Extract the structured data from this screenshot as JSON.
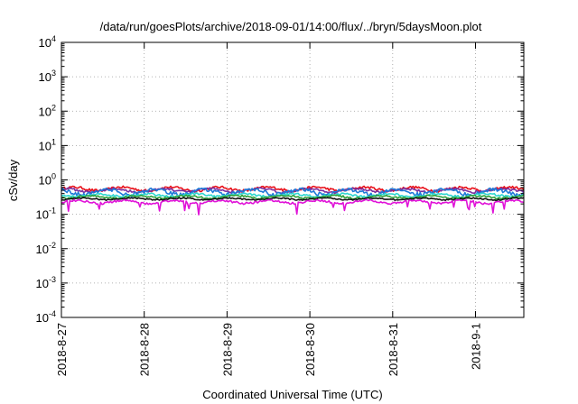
{
  "chart_data": {
    "type": "line",
    "title": "/data/run/goesPlots/archive/2018-09-01/14:00/flux/../bryn/5daysMoon.plot",
    "xlabel": "Coordinated Universal Time (UTC)",
    "ylabel": "cSv/day",
    "yscale": "log",
    "ylim": [
      0.0001,
      10000
    ],
    "xlim": [
      "2018-08-27 00:00",
      "2018-09-01 14:00"
    ],
    "grid": true,
    "x_tick_labels": [
      "2018-8-27",
      "2018-8-28",
      "2018-8-29",
      "2018-8-30",
      "2018-8-31",
      "2018-9-1"
    ],
    "y_tick_labels": [
      {
        "base": "10",
        "exp": "-4"
      },
      {
        "base": "10",
        "exp": "-3"
      },
      {
        "base": "10",
        "exp": "-2"
      },
      {
        "base": "10",
        "exp": "-1"
      },
      {
        "base": "10",
        "exp": "0"
      },
      {
        "base": "10",
        "exp": "1"
      },
      {
        "base": "10",
        "exp": "2"
      },
      {
        "base": "10",
        "exp": "3"
      },
      {
        "base": "10",
        "exp": "4"
      }
    ],
    "series": [
      {
        "color": "#e8101a",
        "base": 0.55,
        "amp": 0.12,
        "dips": false
      },
      {
        "color": "#7a2fa0",
        "base": 0.5,
        "amp": 0.1,
        "dips": false
      },
      {
        "color": "#1f7ad8",
        "base": 0.45,
        "amp": 0.14,
        "dips": false
      },
      {
        "color": "#2fd7d0",
        "base": 0.36,
        "amp": 0.06,
        "dips": false
      },
      {
        "color": "#2e9f3a",
        "base": 0.32,
        "amp": 0.05,
        "dips": false
      },
      {
        "color": "#111111",
        "base": 0.28,
        "amp": 0.03,
        "dips": false
      },
      {
        "color": "#e012d8",
        "base": 0.23,
        "amp": 0.04,
        "dips": true
      }
    ]
  }
}
